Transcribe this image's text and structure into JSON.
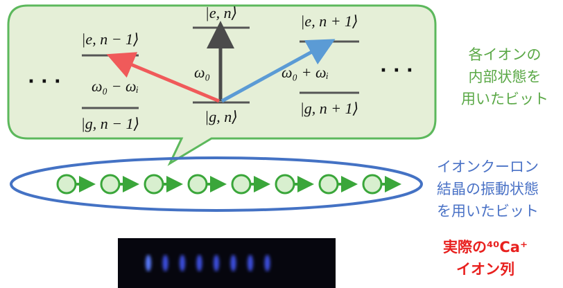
{
  "levels": [
    "|e, n − 1⟩",
    "|e, n⟩",
    "|e, n + 1⟩",
    "|g, n − 1⟩",
    "|g, n⟩",
    "|g, n + 1⟩"
  ],
  "transitions": [
    "ω₀",
    "ω₀ − ωᵢ",
    "ω₀ + ωᵢ"
  ],
  "ellipsis": [
    "·  ·  ·",
    "·  ·  ·"
  ],
  "side_labels": {
    "internal": [
      "各イオンの",
      "内部状態を",
      "用いたビット"
    ],
    "vibration": [
      "イオンクーロン",
      "結晶の振動状態",
      "を用いたビット"
    ],
    "actual": [
      "実際の⁴⁰Ca⁺",
      "イオン列"
    ]
  }
}
